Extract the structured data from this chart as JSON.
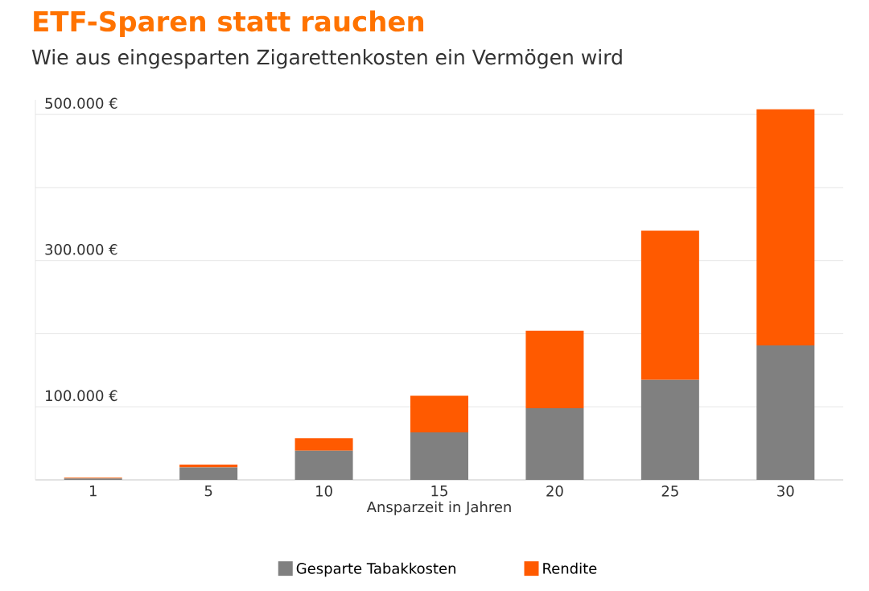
{
  "chart_data": {
    "type": "bar",
    "title": "ETF-Sparen statt rauchen",
    "subtitle": "Wie aus eingesparten Zigarettenkosten ein Vermögen wird",
    "xlabel": "Ansparzeit in Jahren",
    "categories": [
      "1",
      "5",
      "10",
      "15",
      "20",
      "25",
      "30"
    ],
    "stacked": true,
    "series": [
      {
        "name": "Gesparte Tabakkosten",
        "color": "#808080",
        "values": [
          2000,
          17000,
          40000,
          65000,
          98000,
          137000,
          184000
        ]
      },
      {
        "name": "Rendite",
        "color": "#ff5a00",
        "values": [
          1000,
          4000,
          17000,
          50000,
          106000,
          204000,
          323000
        ]
      }
    ],
    "ylim": [
      0,
      520000
    ],
    "yticks": [
      {
        "value": 0,
        "label": null
      },
      {
        "value": 100000,
        "label": "100.000 €"
      },
      {
        "value": 200000,
        "label": null
      },
      {
        "value": 300000,
        "label": "300.000 €"
      },
      {
        "value": 400000,
        "label": null
      },
      {
        "value": 500000,
        "label": "500.000 €"
      }
    ],
    "grid": "y",
    "legend": "bottom"
  }
}
